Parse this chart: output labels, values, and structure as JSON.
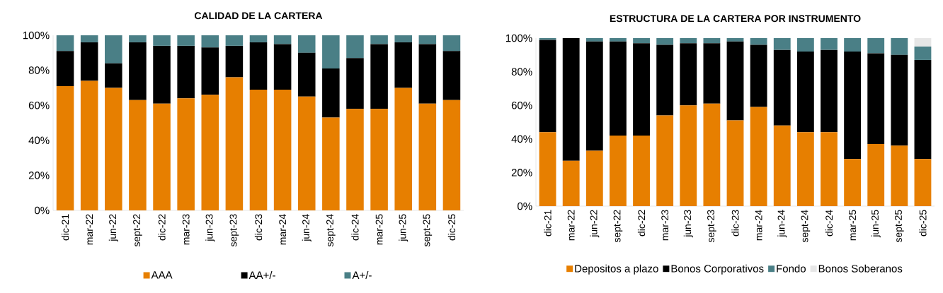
{
  "chart_data": [
    {
      "type": "bar",
      "stacked": true,
      "title": "CALIDAD DE LA CARTERA",
      "categories": [
        "dic-21",
        "mar-22",
        "jun-22",
        "sept-22",
        "dic-22",
        "mar-23",
        "jun-23",
        "sept-23",
        "dic-23",
        "mar-24",
        "jun-24",
        "sept-24",
        "dic-24",
        "mar-25",
        "jun-25",
        "sept-25",
        "dic-25"
      ],
      "series": [
        {
          "name": "AAA",
          "color": "#e77f00",
          "values": [
            71,
            74,
            70,
            63,
            61,
            64,
            66,
            76,
            69,
            69,
            65,
            53,
            58,
            58,
            70,
            61,
            63
          ]
        },
        {
          "name": "AA+/-",
          "color": "#000000",
          "values": [
            20,
            22,
            14,
            33,
            33,
            30,
            27,
            18,
            27,
            26,
            25,
            28,
            29,
            37,
            26,
            34,
            28
          ]
        },
        {
          "name": "A+/-",
          "color": "#4a7f86",
          "values": [
            9,
            4,
            16,
            4,
            6,
            6,
            7,
            6,
            4,
            5,
            10,
            19,
            13,
            5,
            4,
            5,
            9
          ]
        }
      ],
      "ylim": [
        0,
        100
      ],
      "yticks": [
        {
          "value": 0,
          "label": "0%"
        },
        {
          "value": 20,
          "label": "20%"
        },
        {
          "value": 40,
          "label": "40%"
        },
        {
          "value": 60,
          "label": "60%"
        },
        {
          "value": 80,
          "label": "80%"
        },
        {
          "value": 100,
          "label": "100%"
        }
      ],
      "legend": "bottom",
      "grid": false
    },
    {
      "type": "bar",
      "stacked": true,
      "title": "ESTRUCTURA DE LA CARTERA POR INSTRUMENTO",
      "categories": [
        "dic-21",
        "mar-22",
        "jun-22",
        "sept-22",
        "dic-22",
        "mar-23",
        "jun-23",
        "sept-23",
        "dic-23",
        "mar-24",
        "jun-24",
        "sept-24",
        "dic-24",
        "mar-25",
        "jun-25",
        "sept-25",
        "dic-25"
      ],
      "series": [
        {
          "name": "Depositos a plazo",
          "color": "#e77f00",
          "values": [
            44,
            27,
            33,
            42,
            42,
            54,
            60,
            61,
            51,
            59,
            48,
            44,
            44,
            28,
            37,
            36,
            28
          ]
        },
        {
          "name": "Bonos Corporativos",
          "color": "#000000",
          "values": [
            55,
            73,
            65,
            56,
            55,
            42,
            37,
            36,
            47,
            37,
            45,
            48,
            49,
            64,
            54,
            54,
            59
          ]
        },
        {
          "name": "Fondo",
          "color": "#4a7f86",
          "values": [
            1,
            0,
            2,
            2,
            3,
            4,
            3,
            3,
            2,
            4,
            7,
            8,
            7,
            8,
            9,
            10,
            8
          ]
        },
        {
          "name": "Bonos Soberanos",
          "color": "#e6e6e6",
          "values": [
            0,
            0,
            0,
            0,
            0,
            0,
            0,
            0,
            0,
            0,
            0,
            0,
            0,
            0,
            0,
            0,
            5
          ]
        }
      ],
      "ylim": [
        0,
        100
      ],
      "yticks": [
        {
          "value": 0,
          "label": "0%"
        },
        {
          "value": 20,
          "label": "20%"
        },
        {
          "value": 40,
          "label": "40%"
        },
        {
          "value": 60,
          "label": "60%"
        },
        {
          "value": 80,
          "label": "80%"
        },
        {
          "value": 100,
          "label": "100%"
        }
      ],
      "legend": "bottom",
      "grid": false
    }
  ]
}
